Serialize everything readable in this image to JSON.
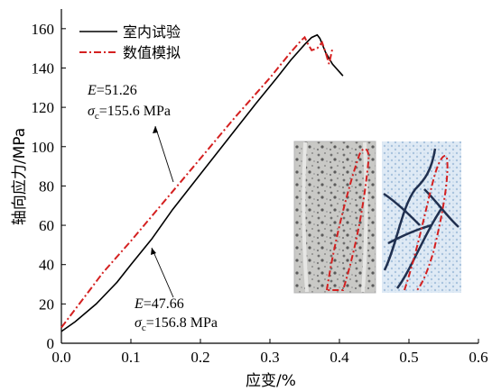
{
  "chart_data": {
    "type": "line",
    "xlabel": "应变/%",
    "ylabel": "轴向应力/MPa",
    "xlim": [
      0.0,
      0.6
    ],
    "ylim": [
      0,
      170
    ],
    "x_ticks": [
      "0.0",
      "0.1",
      "0.2",
      "0.3",
      "0.4",
      "0.5",
      "0.6"
    ],
    "y_ticks": [
      "0",
      "20",
      "40",
      "60",
      "80",
      "100",
      "120",
      "140",
      "160"
    ],
    "legend_position": "top-left",
    "series": [
      {
        "name": "室内试验",
        "color": "#000000",
        "style": "solid",
        "x": [
          0.0,
          0.02,
          0.05,
          0.08,
          0.1,
          0.13,
          0.16,
          0.2,
          0.24,
          0.28,
          0.31,
          0.33,
          0.35,
          0.36,
          0.368,
          0.372,
          0.38,
          0.39,
          0.4,
          0.405
        ],
        "y": [
          6,
          11,
          20,
          31,
          40,
          53,
          68,
          86,
          104,
          122,
          135,
          144,
          152,
          155.5,
          156.8,
          155,
          148,
          142,
          138,
          136
        ]
      },
      {
        "name": "数值模拟",
        "color": "#d42020",
        "style": "dash-dot",
        "x": [
          0.0,
          0.03,
          0.06,
          0.1,
          0.15,
          0.2,
          0.25,
          0.3,
          0.33,
          0.345,
          0.35,
          0.355,
          0.36,
          0.368,
          0.375,
          0.38,
          0.385,
          0.39
        ],
        "y": [
          8,
          22,
          36,
          52,
          73,
          94,
          115,
          135,
          148,
          154,
          155.6,
          152,
          149,
          150,
          153,
          148,
          142,
          150
        ]
      }
    ],
    "annotations": [
      {
        "line1_label": "E",
        "line1_value": "=51.26",
        "line2_label": "σ",
        "line2_sub": "c",
        "line2_value": "=155.6 MPa"
      },
      {
        "line1_label": "E",
        "line1_value": "=47.66",
        "line2_label": "σ",
        "line2_sub": "c",
        "line2_value": "=156.8 MPa"
      }
    ],
    "inset_images": [
      {
        "name": "rock-sample-photo"
      },
      {
        "name": "numerical-crack-map"
      }
    ]
  }
}
